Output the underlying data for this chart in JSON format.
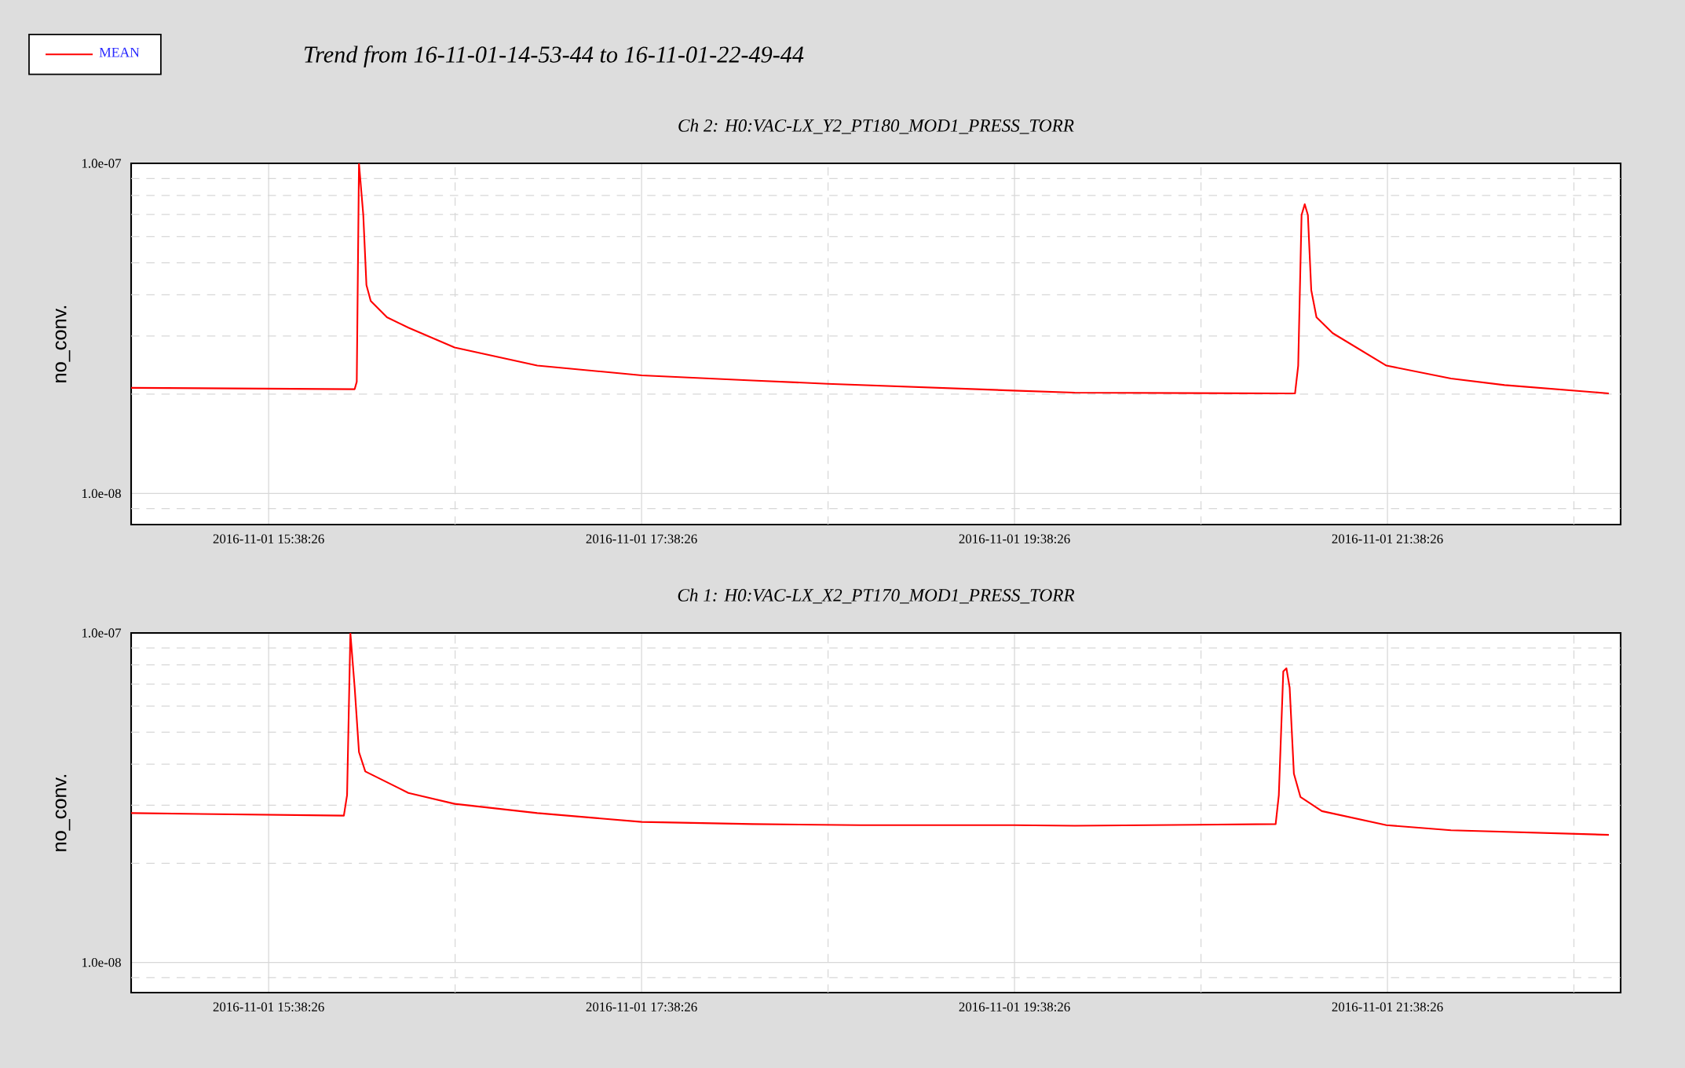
{
  "chart_data": [
    {
      "type": "line",
      "title": "Trend from 16-11-01-14-53-44 to 16-11-01-22-49-44",
      "subtitle": "Ch 2: H0:VAC-LX_Y2_PT180_MOD1_PRESS_TORR",
      "ylabel": "no_conv.",
      "x": [
        "2016-11-01T14:54:11",
        "2016-11-01T16:06:07",
        "2016-11-01T16:06:47",
        "2016-11-01T16:07:30",
        "2016-11-01T16:08:53",
        "2016-11-01T16:09:54",
        "2016-11-01T16:11:17",
        "2016-11-01T16:16:30",
        "2016-11-01T16:23:24",
        "2016-11-01T16:38:17",
        "2016-11-01T17:04:52",
        "2016-11-01T17:38:28",
        "2016-11-01T18:14:02",
        "2016-11-01T18:38:17",
        "2016-11-01T19:38:06",
        "2016-11-01T19:57:47",
        "2016-11-01T21:06:58",
        "2016-11-01T21:08:42",
        "2016-11-01T21:09:43",
        "2016-11-01T21:10:48",
        "2016-11-01T21:11:49",
        "2016-11-01T21:12:50",
        "2016-11-01T21:13:55",
        "2016-11-01T21:15:36",
        "2016-11-01T21:20:49",
        "2016-11-01T21:38:06",
        "2016-11-01T21:58:52",
        "2016-11-01T22:16:08",
        "2016-11-01T22:49:41"
      ],
      "series": [
        {
          "name": "MEAN",
          "color": "#ff0000",
          "values": [
            2.09e-08,
            2.07e-08,
            2.18e-08,
            1e-07,
            6.98e-08,
            4.28e-08,
            3.83e-08,
            3.42e-08,
            3.18e-08,
            2.77e-08,
            2.44e-08,
            2.28e-08,
            2.2e-08,
            2.15e-08,
            2.05e-08,
            2.02e-08,
            2.01e-08,
            2.01e-08,
            2.44e-08,
            6.98e-08,
            7.52e-08,
            6.98e-08,
            4.13e-08,
            3.42e-08,
            3.06e-08,
            2.44e-08,
            2.23e-08,
            2.13e-08,
            2.01e-08
          ]
        }
      ],
      "xlim": [
        "2016-11-01T14:54:11",
        "2016-11-01T22:53:28"
      ],
      "ylim": [
        8.05e-09,
        1e-07
      ],
      "xticks": [
        {
          "value": "2016-11-01T15:38:26",
          "label": "2016-11-01 15:38:26"
        },
        {
          "value": "2016-11-01T16:38:26",
          "label": null
        },
        {
          "value": "2016-11-01T17:38:26",
          "label": "2016-11-01 17:38:26"
        },
        {
          "value": "2016-11-01T18:38:26",
          "label": null
        },
        {
          "value": "2016-11-01T19:38:26",
          "label": "2016-11-01 19:38:26"
        },
        {
          "value": "2016-11-01T20:38:26",
          "label": null
        },
        {
          "value": "2016-11-01T21:38:26",
          "label": "2016-11-01 21:38:26"
        },
        {
          "value": "2016-11-01T22:38:26",
          "label": null
        }
      ],
      "yticks": [
        {
          "value": 9e-09,
          "label": null
        },
        {
          "value": 1e-08,
          "label": "1.0e-08"
        },
        {
          "value": 2e-08,
          "label": null
        },
        {
          "value": 3e-08,
          "label": null
        },
        {
          "value": 4e-08,
          "label": null
        },
        {
          "value": 5e-08,
          "label": null
        },
        {
          "value": 6e-08,
          "label": null
        },
        {
          "value": 7e-08,
          "label": null
        },
        {
          "value": 8e-08,
          "label": null
        },
        {
          "value": 9e-08,
          "label": null
        },
        {
          "value": 1e-07,
          "label": "1.0e-07"
        }
      ],
      "log": "y",
      "grid": true,
      "legend": "top left"
    },
    {
      "type": "line",
      "title": "Ch 1: H0:VAC-LX_X2_PT170_MOD1_PRESS_TORR",
      "ylabel": "no_conv.",
      "x": [
        "2016-11-01T14:54:11",
        "2016-11-01T16:02:38",
        "2016-11-01T16:03:40",
        "2016-11-01T16:04:44",
        "2016-11-01T16:06:07",
        "2016-11-01T16:07:30",
        "2016-11-01T16:09:32",
        "2016-11-01T16:23:24",
        "2016-11-01T16:38:17",
        "2016-11-01T17:04:52",
        "2016-11-01T17:38:28",
        "2016-11-01T18:14:02",
        "2016-11-01T18:48:40",
        "2016-11-01T19:38:06",
        "2016-11-01T19:57:47",
        "2016-11-01T21:02:28",
        "2016-11-01T21:03:29",
        "2016-11-01T21:04:55",
        "2016-11-01T21:05:56",
        "2016-11-01T21:06:58",
        "2016-11-01T21:08:20",
        "2016-11-01T21:10:26",
        "2016-11-01T21:17:20",
        "2016-11-01T21:38:06",
        "2016-11-01T21:58:52",
        "2016-11-01T22:49:41"
      ],
      "series": [
        {
          "color": "#ff0000",
          "values": [
            2.84e-08,
            2.79e-08,
            3.22e-08,
            1e-07,
            6.82e-08,
            4.35e-08,
            3.8e-08,
            3.27e-08,
            3.03e-08,
            2.84e-08,
            2.67e-08,
            2.63e-08,
            2.61e-08,
            2.61e-08,
            2.6e-08,
            2.63e-08,
            3.22e-08,
            7.64e-08,
            7.81e-08,
            6.82e-08,
            3.74e-08,
            3.18e-08,
            2.88e-08,
            2.61e-08,
            2.52e-08,
            2.44e-08
          ]
        }
      ],
      "xlim": [
        "2016-11-01T14:54:11",
        "2016-11-01T22:53:28"
      ],
      "ylim": [
        8.1e-09,
        1e-07
      ],
      "xticks": [
        {
          "value": "2016-11-01T15:38:26",
          "label": "2016-11-01 15:38:26"
        },
        {
          "value": "2016-11-01T16:38:26",
          "label": null
        },
        {
          "value": "2016-11-01T17:38:26",
          "label": "2016-11-01 17:38:26"
        },
        {
          "value": "2016-11-01T18:38:26",
          "label": null
        },
        {
          "value": "2016-11-01T19:38:26",
          "label": "2016-11-01 19:38:26"
        },
        {
          "value": "2016-11-01T20:38:26",
          "label": null
        },
        {
          "value": "2016-11-01T21:38:26",
          "label": "2016-11-01 21:38:26"
        },
        {
          "value": "2016-11-01T22:38:26",
          "label": null
        }
      ],
      "yticks": [
        {
          "value": 9e-09,
          "label": null
        },
        {
          "value": 1e-08,
          "label": "1.0e-08"
        },
        {
          "value": 2e-08,
          "label": null
        },
        {
          "value": 3e-08,
          "label": null
        },
        {
          "value": 4e-08,
          "label": null
        },
        {
          "value": 5e-08,
          "label": null
        },
        {
          "value": 6e-08,
          "label": null
        },
        {
          "value": 7e-08,
          "label": null
        },
        {
          "value": 8e-08,
          "label": null
        },
        {
          "value": 9e-08,
          "label": null
        },
        {
          "value": 1e-07,
          "label": "1.0e-07"
        }
      ],
      "log": "y",
      "grid": true
    }
  ]
}
